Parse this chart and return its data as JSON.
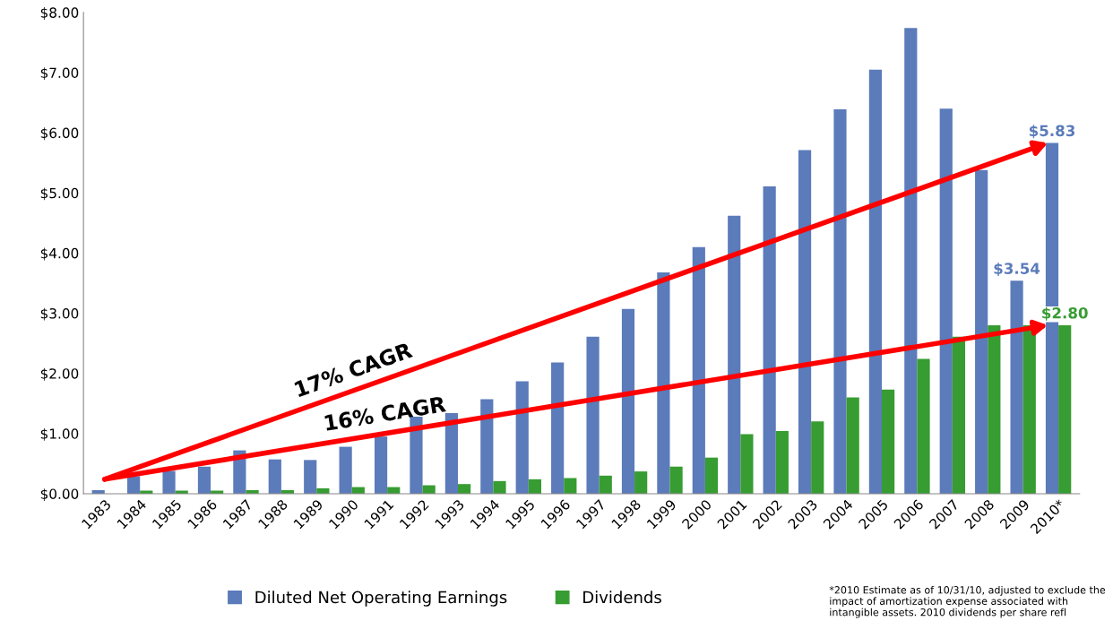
{
  "chart_data": {
    "type": "bar",
    "categories": [
      "1983",
      "1984",
      "1985",
      "1986",
      "1987",
      "1988",
      "1989",
      "1990",
      "1991",
      "1992",
      "1993",
      "1994",
      "1995",
      "1996",
      "1997",
      "1998",
      "1999",
      "2000",
      "2001",
      "2002",
      "2003",
      "2004",
      "2005",
      "2006",
      "2007",
      "2008",
      "2009",
      "2010*"
    ],
    "series": [
      {
        "name": "Diluted Net Operating Earnings",
        "color": "#5b7bba",
        "values": [
          0.06,
          0.29,
          0.38,
          0.45,
          0.72,
          0.57,
          0.56,
          0.78,
          0.95,
          1.28,
          1.34,
          1.57,
          1.87,
          2.18,
          2.61,
          3.07,
          3.68,
          4.1,
          4.62,
          5.11,
          5.71,
          6.39,
          7.05,
          7.74,
          6.4,
          5.38,
          3.54,
          5.83
        ],
        "value_labels": [
          null,
          null,
          null,
          null,
          null,
          null,
          null,
          null,
          null,
          null,
          null,
          null,
          null,
          null,
          null,
          null,
          null,
          null,
          null,
          null,
          null,
          null,
          null,
          null,
          null,
          null,
          "$3.54",
          "$5.83"
        ]
      },
      {
        "name": "Dividends",
        "color": "#379c31",
        "values": [
          null,
          0.05,
          0.05,
          0.05,
          0.06,
          0.06,
          0.09,
          0.11,
          0.11,
          0.14,
          0.16,
          0.21,
          0.24,
          0.26,
          0.3,
          0.37,
          0.45,
          0.6,
          0.99,
          1.04,
          1.2,
          1.6,
          1.73,
          2.24,
          2.61,
          2.8,
          2.8,
          2.8
        ],
        "value_labels": [
          null,
          null,
          null,
          null,
          null,
          null,
          null,
          null,
          null,
          null,
          null,
          null,
          null,
          null,
          null,
          null,
          null,
          null,
          null,
          null,
          null,
          null,
          null,
          null,
          null,
          null,
          null,
          "$2.80"
        ]
      }
    ],
    "ylim": [
      0,
      8
    ],
    "yticks": [
      {
        "value": 0,
        "label": "$0.00"
      },
      {
        "value": 1,
        "label": "$1.00"
      },
      {
        "value": 2,
        "label": "$2.00"
      },
      {
        "value": 3,
        "label": "$3.00"
      },
      {
        "value": 4,
        "label": "$4.00"
      },
      {
        "value": 5,
        "label": "$5.00"
      },
      {
        "value": 6,
        "label": "$6.00"
      },
      {
        "value": 7,
        "label": "$7.00"
      },
      {
        "value": 8,
        "label": "$8.00"
      }
    ],
    "annotations": [
      "17% CAGR",
      "16% CAGR",
      "*2010 Estimate as of 10/31/10, adjusted to exclude the impact of amortization expense associated with intangible assets. 2010 dividends per share refl"
    ],
    "grid": false,
    "legend": "bottom"
  }
}
